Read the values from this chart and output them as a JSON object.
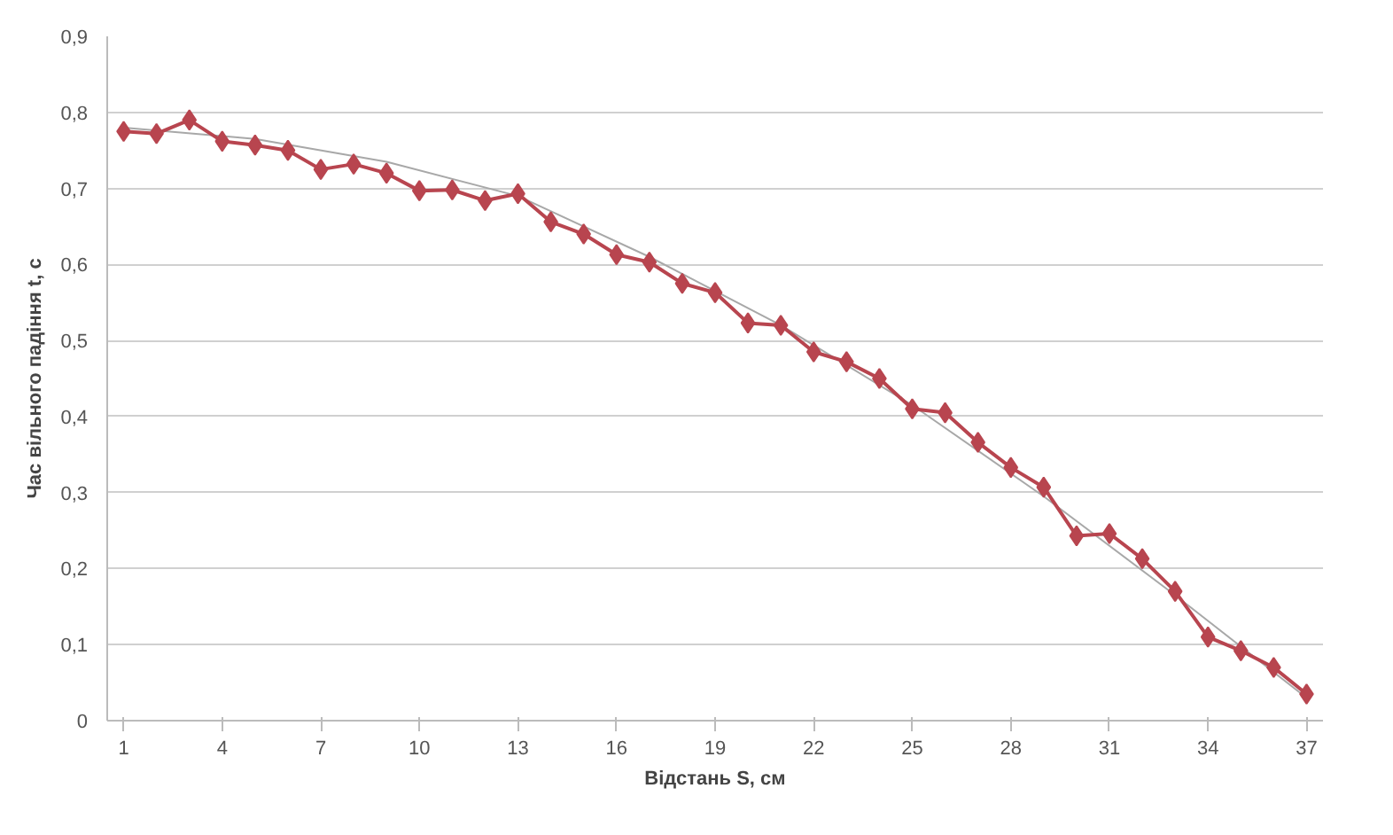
{
  "chart_data": {
    "type": "line",
    "xlabel": "Відстань S, см",
    "ylabel": "Час вільного падіння t, с",
    "x": [
      1,
      2,
      3,
      4,
      5,
      6,
      7,
      8,
      9,
      10,
      11,
      12,
      13,
      14,
      15,
      16,
      17,
      18,
      19,
      20,
      21,
      22,
      23,
      24,
      25,
      26,
      27,
      28,
      29,
      30,
      31,
      32,
      33,
      34,
      35,
      36,
      37
    ],
    "series": [
      {
        "color": "#a8a8a8",
        "marker": "none",
        "x": [
          1,
          5,
          9,
          13,
          17,
          21,
          25,
          29,
          33,
          37
        ],
        "values": [
          0.78,
          0.765,
          0.735,
          0.69,
          0.61,
          0.52,
          0.415,
          0.295,
          0.165,
          0.03
        ]
      },
      {
        "color": "#b8454f",
        "marker": "diamond",
        "values": [
          0.775,
          0.772,
          0.79,
          0.762,
          0.757,
          0.75,
          0.725,
          0.732,
          0.72,
          0.697,
          0.698,
          0.684,
          0.693,
          0.656,
          0.64,
          0.613,
          0.603,
          0.575,
          0.563,
          0.523,
          0.52,
          0.485,
          0.472,
          0.45,
          0.41,
          0.405,
          0.366,
          0.333,
          0.307,
          0.243,
          0.246,
          0.213,
          0.17,
          0.11,
          0.092,
          0.07,
          0.035
        ]
      }
    ],
    "xlim": [
      0.5,
      37.5
    ],
    "xticks": [
      1,
      4,
      7,
      10,
      13,
      16,
      19,
      22,
      25,
      28,
      31,
      34,
      37
    ],
    "ylim": [
      0,
      0.9
    ],
    "yticks": [
      {
        "value": 0,
        "label": "0"
      },
      {
        "value": 0.1,
        "label": "0,1"
      },
      {
        "value": 0.2,
        "label": "0,2"
      },
      {
        "value": 0.3,
        "label": "0,3"
      },
      {
        "value": 0.4,
        "label": "0,4"
      },
      {
        "value": 0.5,
        "label": "0,5"
      },
      {
        "value": 0.6,
        "label": "0,6"
      },
      {
        "value": 0.7,
        "label": "0,7"
      },
      {
        "value": 0.8,
        "label": "0,8"
      },
      {
        "value": 0.9,
        "label": "0,9"
      }
    ],
    "grid": "y",
    "line_style": "solid"
  }
}
